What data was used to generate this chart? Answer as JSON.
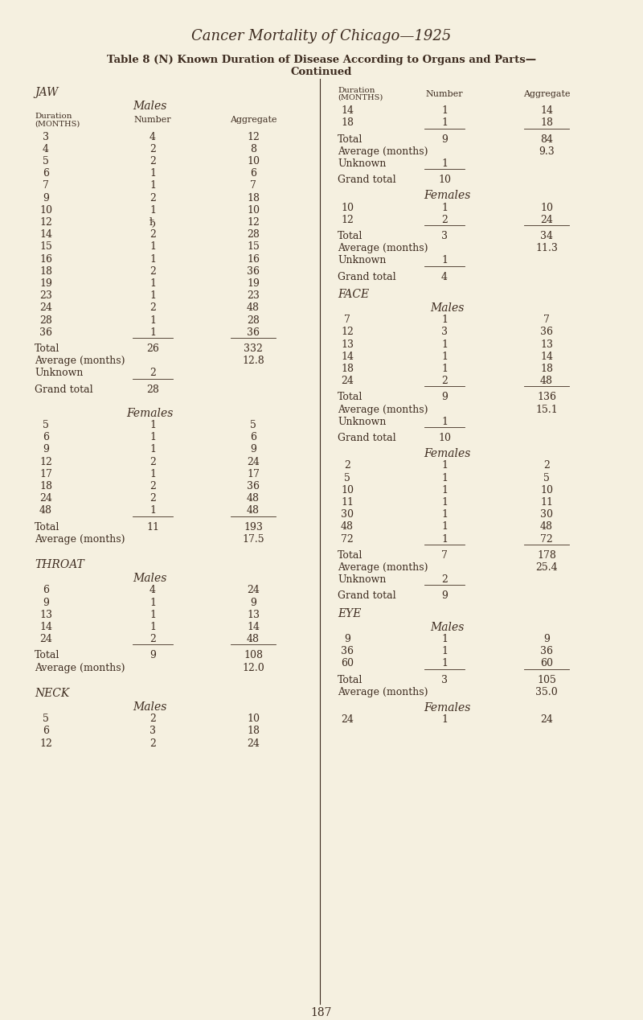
{
  "title": "Cancer Mortality of Chicago—1925",
  "subtitle1": "Table 8 (N) Known Duration of Disease According to Organs and Parts—",
  "subtitle2": "Continued",
  "bg_color": "#f5f0e0",
  "text_color": "#3d2b1f",
  "page_number": "187"
}
